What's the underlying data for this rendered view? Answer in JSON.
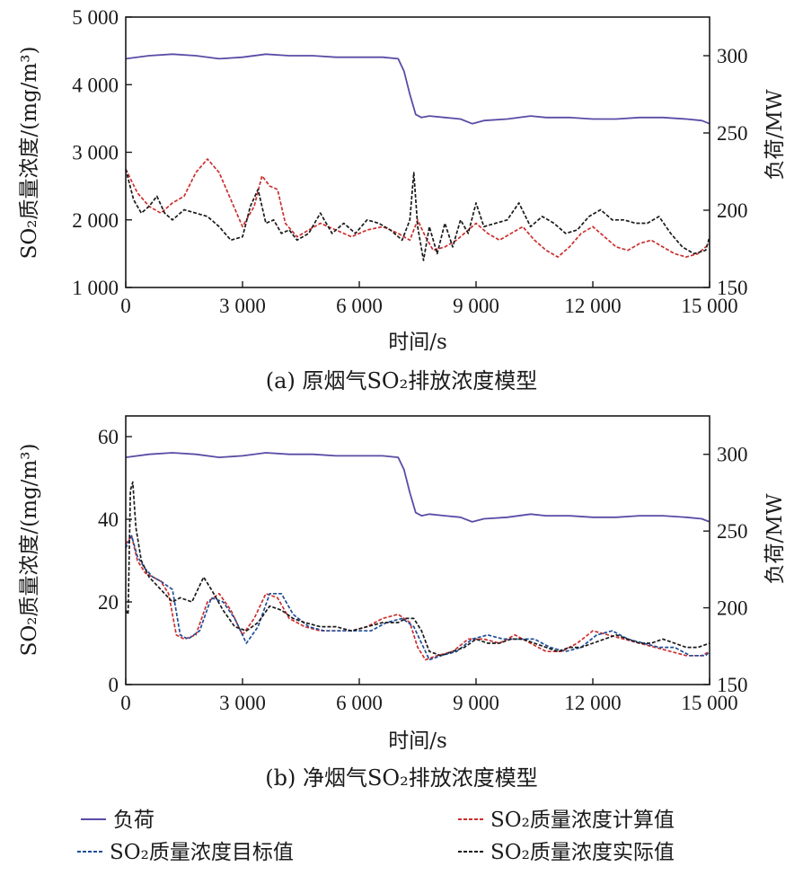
{
  "chart_data": [
    {
      "type": "line",
      "caption": "(a)  原烟气SO₂排放浓度模型",
      "xlabel": "时间/s",
      "ylabel_left": "SO₂质量浓度/(mg/m³)",
      "ylabel_right": "负荷/MW",
      "xlim": [
        0,
        15000
      ],
      "ylim_left": [
        1000,
        5000
      ],
      "ylim_right": [
        150,
        325
      ],
      "x_ticks": [
        0,
        3000,
        6000,
        9000,
        12000,
        15000
      ],
      "x_tick_labels": [
        "0",
        "3 000",
        "6 000",
        "9 000",
        "12 000",
        "15 000"
      ],
      "y_left_ticks": [
        1000,
        2000,
        3000,
        4000,
        5000
      ],
      "y_left_tick_labels": [
        "1 000",
        "2 000",
        "3 000",
        "4 000",
        "5 000"
      ],
      "y_right_ticks": [
        150,
        200,
        250,
        300
      ],
      "y_right_tick_labels": [
        "150",
        "200",
        "250",
        "300"
      ],
      "series": [
        {
          "name": "负荷",
          "axis": "right",
          "color": "#5a4ca6",
          "style": "solid",
          "x": [
            0,
            600,
            1200,
            1800,
            2400,
            3000,
            3600,
            4200,
            4800,
            5400,
            6000,
            6600,
            7000,
            7150,
            7300,
            7450,
            7600,
            7800,
            8200,
            8600,
            8900,
            9200,
            9800,
            10400,
            10800,
            11400,
            12000,
            12600,
            13200,
            13800,
            14400,
            14800,
            15000
          ],
          "values": [
            298,
            300,
            301,
            300,
            298,
            299,
            301,
            300,
            300,
            299,
            299,
            299,
            298,
            290,
            275,
            262,
            260,
            261,
            260,
            259,
            256,
            258,
            259,
            261,
            260,
            260,
            259,
            259,
            260,
            260,
            259,
            258,
            256
          ]
        },
        {
          "name": "SO₂质量浓度计算值",
          "axis": "left",
          "color": "#cc2f2f",
          "style": "dashed",
          "x": [
            0,
            300,
            600,
            900,
            1200,
            1500,
            1800,
            2100,
            2400,
            2700,
            3000,
            3300,
            3500,
            3700,
            3900,
            4100,
            4400,
            4700,
            5000,
            5400,
            5800,
            6200,
            6600,
            7000,
            7300,
            7500,
            7700,
            7900,
            8200,
            8500,
            8800,
            9000,
            9300,
            9600,
            9900,
            10200,
            10500,
            10800,
            11100,
            11400,
            11700,
            12000,
            12300,
            12600,
            12900,
            13200,
            13500,
            13800,
            14100,
            14400,
            14700,
            15000
          ],
          "values": [
            2750,
            2400,
            2200,
            2100,
            2250,
            2350,
            2700,
            2900,
            2700,
            2300,
            1900,
            2200,
            2650,
            2500,
            2450,
            1950,
            1750,
            1850,
            1950,
            1850,
            1750,
            1850,
            1900,
            1800,
            1700,
            2000,
            1750,
            1550,
            1600,
            1700,
            1850,
            1950,
            1800,
            1700,
            1800,
            1900,
            1700,
            1550,
            1450,
            1600,
            1800,
            1900,
            1750,
            1600,
            1550,
            1650,
            1700,
            1600,
            1500,
            1450,
            1500,
            1650
          ]
        },
        {
          "name": "SO₂质量浓度实际值",
          "axis": "left",
          "color": "#1a1a1a",
          "style": "dashed",
          "x": [
            0,
            200,
            400,
            600,
            800,
            1000,
            1200,
            1500,
            1800,
            2100,
            2400,
            2700,
            3000,
            3200,
            3400,
            3600,
            3800,
            4000,
            4200,
            4400,
            4700,
            5000,
            5300,
            5600,
            5900,
            6200,
            6500,
            6800,
            7100,
            7300,
            7400,
            7500,
            7650,
            7800,
            8000,
            8200,
            8400,
            8600,
            8800,
            9000,
            9200,
            9500,
            9800,
            10100,
            10400,
            10700,
            11000,
            11300,
            11600,
            11900,
            12200,
            12500,
            12800,
            13100,
            13400,
            13700,
            14000,
            14300,
            14600,
            14900,
            15000
          ],
          "values": [
            2750,
            2300,
            2100,
            2200,
            2350,
            2100,
            2000,
            2150,
            2100,
            2050,
            1900,
            1700,
            1750,
            2200,
            2450,
            1950,
            2000,
            1800,
            1850,
            1700,
            1800,
            2100,
            1800,
            1950,
            1800,
            2000,
            1950,
            1850,
            1700,
            2000,
            2700,
            1900,
            1400,
            1900,
            1500,
            1950,
            1600,
            2000,
            1800,
            2250,
            1900,
            1950,
            2000,
            2250,
            1900,
            2050,
            1950,
            1800,
            1850,
            2050,
            2150,
            2000,
            2000,
            1950,
            1950,
            2050,
            1800,
            1600,
            1500,
            1550,
            1750
          ]
        },
        {
          "name": "SO₂质量浓度目标值",
          "axis": "left",
          "color": "#1f4e99",
          "style": "dashed",
          "x": [],
          "values": []
        }
      ]
    },
    {
      "type": "line",
      "caption": "(b)  净烟气SO₂排放浓度模型",
      "xlabel": "时间/s",
      "ylabel_left": "SO₂质量浓度/(mg/m³)",
      "ylabel_right": "负荷/MW",
      "xlim": [
        0,
        15000
      ],
      "ylim_left": [
        0,
        65
      ],
      "ylim_right": [
        150,
        325
      ],
      "x_ticks": [
        0,
        3000,
        6000,
        9000,
        12000,
        15000
      ],
      "x_tick_labels": [
        "0",
        "3 000",
        "6 000",
        "9 000",
        "12 000",
        "15 000"
      ],
      "y_left_ticks": [
        0,
        20,
        40,
        60
      ],
      "y_left_tick_labels": [
        "0",
        "20",
        "40",
        "60"
      ],
      "y_right_ticks": [
        150,
        200,
        250,
        300
      ],
      "y_right_tick_labels": [
        "150",
        "200",
        "250",
        "300"
      ],
      "series": [
        {
          "name": "负荷",
          "axis": "right",
          "color": "#5a4ca6",
          "style": "solid",
          "x": [
            0,
            600,
            1200,
            1800,
            2400,
            3000,
            3600,
            4200,
            4800,
            5400,
            6000,
            6600,
            7000,
            7150,
            7300,
            7450,
            7600,
            7800,
            8200,
            8600,
            8900,
            9200,
            9800,
            10400,
            10800,
            11400,
            12000,
            12600,
            13200,
            13800,
            14400,
            14800,
            15000
          ],
          "values": [
            298,
            300,
            301,
            300,
            298,
            299,
            301,
            300,
            300,
            299,
            299,
            299,
            298,
            290,
            275,
            262,
            260,
            261,
            260,
            259,
            256,
            258,
            259,
            261,
            260,
            260,
            259,
            259,
            260,
            260,
            259,
            258,
            256
          ]
        },
        {
          "name": "SO₂质量浓度计算值",
          "axis": "left",
          "color": "#cc2f2f",
          "style": "dashed",
          "x": [
            0,
            150,
            300,
            500,
            700,
            900,
            1100,
            1300,
            1500,
            1800,
            2100,
            2400,
            2700,
            3000,
            3300,
            3600,
            3900,
            4200,
            4600,
            5000,
            5400,
            5800,
            6200,
            6600,
            7000,
            7300,
            7500,
            7700,
            8000,
            8400,
            8800,
            9200,
            9600,
            10000,
            10400,
            10800,
            11200,
            11600,
            12000,
            12400,
            12800,
            13200,
            13600,
            14000,
            14400,
            14800,
            15000
          ],
          "values": [
            34,
            36,
            30,
            27,
            26,
            25,
            22,
            12,
            11,
            12,
            20,
            22,
            18,
            12,
            16,
            22,
            21,
            16,
            14,
            13,
            13,
            13,
            14,
            16,
            17,
            15,
            9,
            6,
            7,
            8,
            11,
            11,
            10,
            12,
            10,
            8,
            8,
            10,
            13,
            12,
            11,
            10,
            9,
            8,
            7,
            7,
            8
          ]
        },
        {
          "name": "SO₂质量浓度目标值",
          "axis": "left",
          "color": "#1f4e99",
          "style": "dashed",
          "x": [
            0,
            150,
            300,
            500,
            700,
            900,
            1200,
            1400,
            1600,
            1900,
            2200,
            2500,
            2800,
            3100,
            3400,
            3700,
            4000,
            4300,
            4700,
            5100,
            5500,
            5900,
            6300,
            6700,
            7100,
            7400,
            7600,
            7800,
            8100,
            8500,
            8900,
            9300,
            9700,
            10100,
            10500,
            10900,
            11300,
            11700,
            12100,
            12500,
            12900,
            13300,
            13700,
            14100,
            14500,
            14900,
            15000
          ],
          "values": [
            33,
            36,
            31,
            28,
            26,
            25,
            23,
            12,
            11,
            13,
            21,
            20,
            16,
            10,
            14,
            22,
            22,
            17,
            14,
            13,
            13,
            13,
            13,
            15,
            16,
            14,
            10,
            6,
            7,
            8,
            11,
            12,
            11,
            11,
            11,
            9,
            8,
            9,
            12,
            13,
            11,
            10,
            9,
            9,
            7,
            7,
            8
          ]
        },
        {
          "name": "SO₂质量浓度实际值",
          "axis": "left",
          "color": "#1a1a1a",
          "style": "dashed",
          "x": [
            0,
            60,
            120,
            180,
            260,
            400,
            600,
            800,
            1000,
            1200,
            1400,
            1700,
            2000,
            2200,
            2500,
            2800,
            3100,
            3400,
            3700,
            4000,
            4300,
            4600,
            5000,
            5400,
            5800,
            6200,
            6600,
            7000,
            7200,
            7400,
            7600,
            7800,
            8100,
            8400,
            8700,
            9000,
            9300,
            9600,
            9900,
            10200,
            10500,
            10800,
            11100,
            11400,
            11700,
            12000,
            12300,
            12600,
            12900,
            13200,
            13500,
            13800,
            14100,
            14400,
            14700,
            15000
          ],
          "values": [
            18,
            17,
            47,
            49,
            38,
            30,
            26,
            24,
            22,
            20,
            21,
            20,
            26,
            23,
            18,
            14,
            13,
            15,
            19,
            18,
            16,
            15,
            14,
            14,
            13,
            14,
            15,
            15,
            16,
            16,
            13,
            8,
            7,
            8,
            9,
            11,
            10,
            10,
            11,
            11,
            10,
            9,
            8,
            9,
            9,
            10,
            11,
            12,
            11,
            10,
            10,
            11,
            10,
            9,
            9,
            10
          ]
        }
      ]
    }
  ],
  "legend": [
    {
      "label": "负荷",
      "color": "#5a4ca6",
      "style": "solid"
    },
    {
      "label": "SO₂质量浓度计算值",
      "color": "#cc2f2f",
      "style": "dashed"
    },
    {
      "label": "SO₂质量浓度目标值",
      "color": "#1f4e99",
      "style": "dashed"
    },
    {
      "label": "SO₂质量浓度实际值",
      "color": "#1a1a1a",
      "style": "dashed"
    }
  ]
}
